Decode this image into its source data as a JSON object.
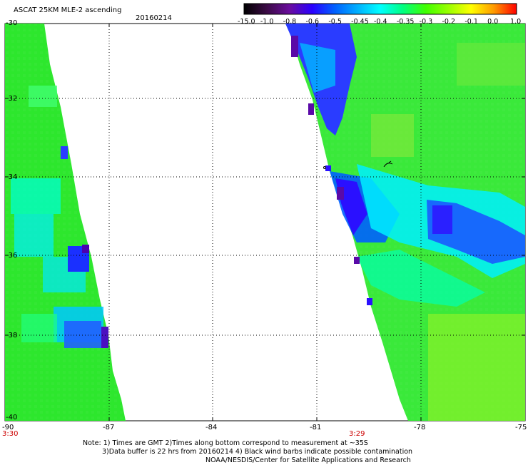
{
  "header": {
    "title": "ASCAT 25KM MLE-2 ascending",
    "date": "20160214"
  },
  "colorbar": {
    "labels": [
      "-15.0",
      "-1.0",
      "-0.8",
      "-0.6",
      "-0.5",
      "-0.45",
      "-0.4",
      "-0.35",
      "-0.3",
      "-0.2",
      "-0.1",
      "0.0",
      "1.0"
    ],
    "colors": [
      "#000000",
      "#3b0a45",
      "#6a0d9e",
      "#2a00ff",
      "#0060ff",
      "#00b0ff",
      "#00ffff",
      "#00ff80",
      "#40ff00",
      "#9aff00",
      "#ffff00",
      "#ff9900",
      "#ff0000"
    ]
  },
  "axes": {
    "lat_labels": [
      "-30",
      "-32",
      "-34",
      "-36",
      "-38",
      "-40"
    ],
    "lon_labels": [
      "-90",
      "-87",
      "-84",
      "-81",
      "-78",
      "-75"
    ]
  },
  "times": {
    "left": "3:30",
    "right": "3:29"
  },
  "notes": {
    "line1": "Note: 1) Times are GMT 2)Times along bottom correspond to measurement at ~35S",
    "line2": "3)Data buffer is 22 hrs from 20160214 4) Black wind barbs indicate possible contamination",
    "line3": "NOAA/NESDIS/Center for Satellite Applications and Research"
  }
}
